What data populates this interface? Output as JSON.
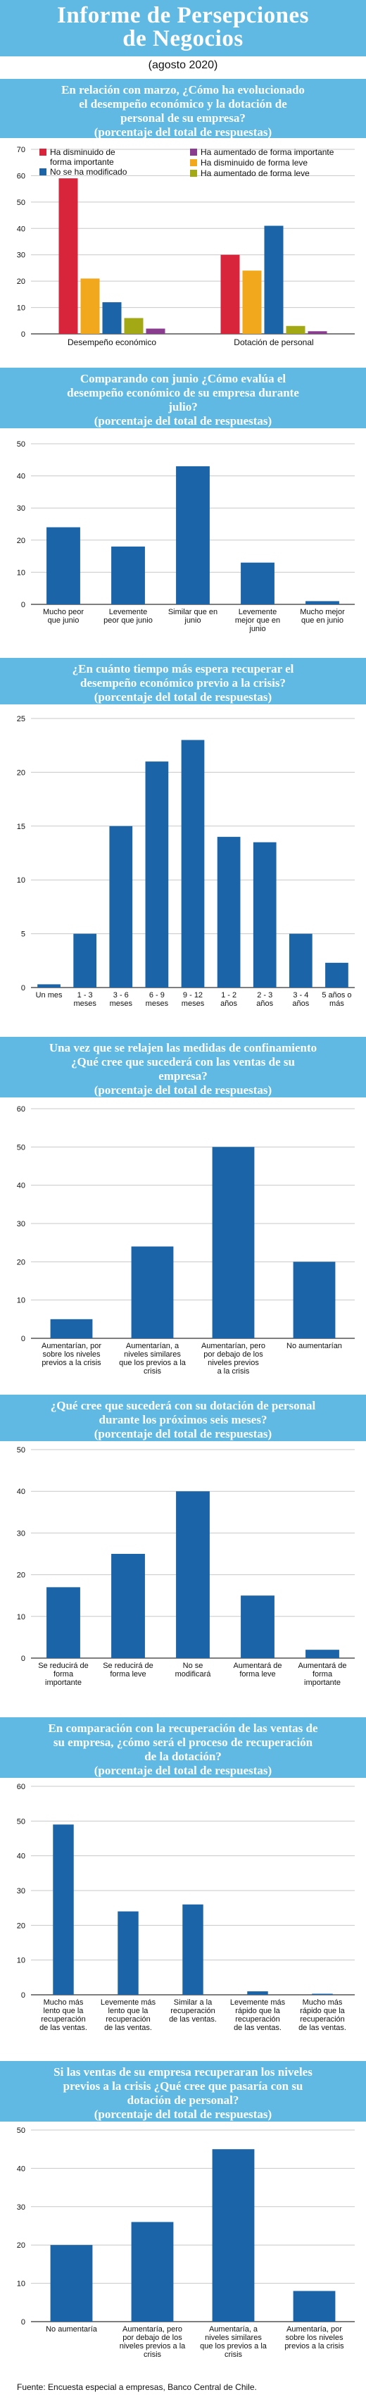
{
  "header": {
    "title_line1": "Informe de Persepciones",
    "title_line2": "de Negocios",
    "date": "(agosto 2020)"
  },
  "colors": {
    "banner": "#5fb9e3",
    "bar": "#1c64a8",
    "red": "#d8253b",
    "orange": "#f2a81d",
    "purple": "#8a3d8f",
    "olive": "#a3a815",
    "grid": "#c8c8c8"
  },
  "footer": "Fuente: Encuesta especial a empresas, Banco Central de Chile.",
  "sections": [
    {
      "question_lines": [
        "En relación con marzo, ¿Cómo ha evolucionado",
        "el desempeño económico y la dotación de",
        "personal de su empresa?"
      ],
      "subnote": "(porcentaje del total de respuestas)"
    },
    {
      "question_lines": [
        "Comparando con junio ¿Cómo evalúa el",
        "desempeño económico de su empresa durante",
        "julio?"
      ],
      "subnote": "(porcentaje del total de respuestas)"
    },
    {
      "question_lines": [
        "¿En cuánto tiempo más espera recuperar el",
        "desempeño económico previo a la crisis?"
      ],
      "subnote": "(porcentaje del total de respuestas)"
    },
    {
      "question_lines": [
        "Una vez que se relajen las medidas de confinamiento",
        "¿Qué cree que sucederá con las ventas de su",
        "empresa?"
      ],
      "subnote": "(porcentaje del total de respuestas)"
    },
    {
      "question_lines": [
        "¿Qué cree que sucederá con su dotación de personal",
        "durante los próximos seis meses?"
      ],
      "subnote": "(porcentaje del total de respuestas)"
    },
    {
      "question_lines": [
        "En comparación con la recuperación de las ventas de",
        "su empresa, ¿cómo será el proceso de recuperación",
        "de la dotación?"
      ],
      "subnote": "(porcentaje del total de respuestas)"
    },
    {
      "question_lines": [
        "Si las ventas de su empresa recuperaran los niveles",
        "previos a la crisis ¿Qué cree que pasaría con su",
        "dotación de personal?"
      ],
      "subnote": "(porcentaje del total de respuestas)"
    }
  ],
  "chart_data": [
    {
      "type": "bar",
      "categories": [
        "Desempeño económico",
        "Dotación de personal"
      ],
      "series": [
        {
          "name": "Ha disminuido de forma importante",
          "color": "#d8253b",
          "values": [
            59,
            30
          ]
        },
        {
          "name": "Ha disminuido de forma leve",
          "color": "#f2a81d",
          "values": [
            21,
            24
          ]
        },
        {
          "name": "No se ha modificado",
          "color": "#1c64a8",
          "values": [
            12,
            41
          ]
        },
        {
          "name": "Ha aumentado de forma leve",
          "color": "#a3a815",
          "values": [
            6,
            3
          ]
        },
        {
          "name": "Ha aumentado de forma importante",
          "color": "#8a3d8f",
          "values": [
            2,
            1
          ]
        }
      ],
      "ylim": [
        0,
        70
      ],
      "yticks": [
        0,
        10,
        20,
        30,
        40,
        50,
        60,
        70
      ],
      "legend_position": "top-left",
      "grid": true
    },
    {
      "type": "bar",
      "categories": [
        [
          "Mucho peor",
          "que junio"
        ],
        [
          "Levemente",
          "peor que junio"
        ],
        [
          "Similar que en",
          "junio"
        ],
        [
          "Levemente",
          "mejor que en",
          "junio"
        ],
        [
          "Mucho mejor",
          "que en junio"
        ]
      ],
      "values": [
        24,
        18,
        43,
        13,
        1
      ],
      "ylim": [
        0,
        50
      ],
      "yticks": [
        0,
        10,
        20,
        30,
        40,
        50
      ],
      "grid": true
    },
    {
      "type": "bar",
      "categories": [
        [
          "Un mes"
        ],
        [
          "1 - 3",
          "meses"
        ],
        [
          "3 - 6",
          "meses"
        ],
        [
          "6 - 9",
          "meses"
        ],
        [
          "9 - 12",
          "meses"
        ],
        [
          "1 - 2",
          "años"
        ],
        [
          "2 - 3",
          "años"
        ],
        [
          "3 - 4",
          "años"
        ],
        [
          "5 años o",
          "más"
        ]
      ],
      "values": [
        0.3,
        5,
        15,
        21,
        23,
        14,
        13.5,
        5,
        2.3
      ],
      "ylim": [
        0,
        25
      ],
      "yticks": [
        0,
        5,
        10,
        15,
        20,
        25
      ],
      "grid": true
    },
    {
      "type": "bar",
      "categories": [
        [
          "Aumentarían, por",
          "sobre los niveles",
          "previos a la crisis"
        ],
        [
          "Aumentarían, a",
          "niveles similares",
          "que los previos a la",
          "crisis"
        ],
        [
          "Aumentarían, pero",
          "por debajo de los",
          "niveles previos",
          "a la crisis"
        ],
        [
          "No aumentarían"
        ]
      ],
      "values": [
        5,
        24,
        50,
        20
      ],
      "ylim": [
        0,
        60
      ],
      "yticks": [
        0,
        10,
        20,
        30,
        40,
        50,
        60
      ],
      "grid": true
    },
    {
      "type": "bar",
      "categories": [
        [
          "Se reducirá de",
          "forma",
          "importante"
        ],
        [
          "Se reducirá de",
          "forma leve"
        ],
        [
          "No se",
          "modificará"
        ],
        [
          "Aumentará de",
          "forma leve"
        ],
        [
          "Aumentará de",
          "forma",
          "importante"
        ]
      ],
      "values": [
        17,
        25,
        40,
        15,
        2
      ],
      "ylim": [
        0,
        50
      ],
      "yticks": [
        0,
        10,
        20,
        30,
        40,
        50
      ],
      "grid": true
    },
    {
      "type": "bar",
      "categories": [
        [
          "Mucho más",
          "lento que la",
          "recuperación",
          "de las ventas."
        ],
        [
          "Levemente más",
          "lento que la",
          "recuperación",
          "de las ventas."
        ],
        [
          "Similar a la",
          "recuperación",
          "de las ventas."
        ],
        [
          "Levemente más",
          "rápido que la",
          "recuperación",
          "de las ventas."
        ],
        [
          "Mucho más",
          "rápido que la",
          "recuperación",
          "de las ventas."
        ]
      ],
      "values": [
        49,
        24,
        26,
        1,
        0.3
      ],
      "ylim": [
        0,
        60
      ],
      "yticks": [
        0,
        10,
        20,
        30,
        40,
        50,
        60
      ],
      "grid": true
    },
    {
      "type": "bar",
      "categories": [
        [
          "No aumentaría"
        ],
        [
          "Aumentaría, pero",
          "por debajo de los",
          "niveles previos a la",
          "crisis"
        ],
        [
          "Aumentaría, a",
          "niveles similares",
          "que los previos a la",
          "crisis"
        ],
        [
          "Aumentaría, por",
          "sobre los niveles",
          "previos a la crisis"
        ]
      ],
      "values": [
        20,
        26,
        45,
        8
      ],
      "ylim": [
        0,
        50
      ],
      "yticks": [
        0,
        10,
        20,
        30,
        40,
        50
      ],
      "grid": true
    }
  ]
}
